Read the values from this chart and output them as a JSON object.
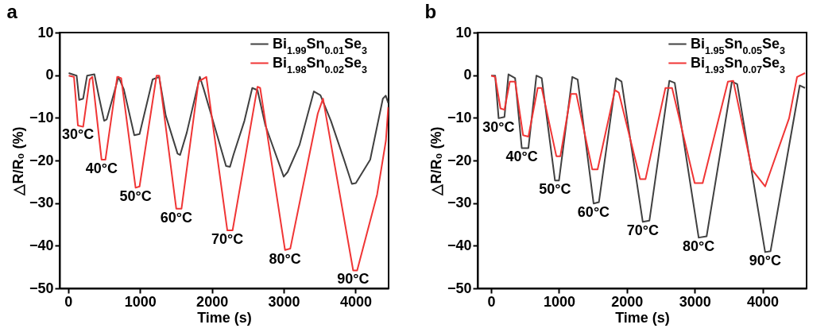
{
  "chart_data": [
    {
      "type": "line",
      "title": "a",
      "xlabel": "Time (s)",
      "ylabel": "△R/R₀ (%)",
      "xlim": [
        -120,
        4460
      ],
      "ylim": [
        -50,
        10
      ],
      "xticks": [
        0,
        1000,
        2000,
        3000,
        4000
      ],
      "yticks": [
        10,
        0,
        -10,
        -20,
        -30,
        -40,
        -50
      ],
      "grid": false,
      "legend": "top right",
      "series": [
        {
          "name": "Bi$_{1.99}$Sn$_{0.01}$Se$_{3}$",
          "color": "#404040",
          "x": [
            7,
            117,
            153,
            208,
            263,
            365,
            427,
            500,
            535,
            700,
            774,
            920,
            993,
            1175,
            1266,
            1358,
            1522,
            1558,
            1650,
            1832,
            1887,
            2015,
            2197,
            2252,
            2300,
            2453,
            2562,
            2635,
            2745,
            3000,
            3055,
            3219,
            3420,
            3511,
            3657,
            3839,
            3949,
            4004,
            4204,
            4380,
            4420,
            4455
          ],
          "values": [
            0.5,
            -0.1,
            -5.8,
            -5.5,
            -0.1,
            0.2,
            -5,
            -10.7,
            -10.4,
            -0.4,
            -3.3,
            -14.1,
            -13.8,
            -1,
            -0.4,
            -9.5,
            -18.4,
            -18.7,
            -13.5,
            -0.4,
            -3.3,
            -10.7,
            -21.3,
            -21.5,
            -18.7,
            -10.7,
            -3,
            -3.5,
            -11.8,
            -23.8,
            -22.7,
            -16.4,
            -3.8,
            -4.7,
            -10.7,
            -19.8,
            -25.5,
            -25.3,
            -19.8,
            -5.5,
            -4.8,
            -6.5
          ]
        },
        {
          "name": "Bi$_{1.98}$Sn$_{0.02}$Se$_{3}$",
          "color": "#f03535",
          "x": [
            7,
            80,
            135,
            208,
            299,
            336,
            464,
            518,
            682,
            737,
            938,
            993,
            1230,
            1266,
            1504,
            1577,
            1814,
            1923,
            2215,
            2288,
            2635,
            2672,
            3018,
            3091,
            3474,
            3547,
            3967,
            4022,
            4300,
            4423,
            4455
          ],
          "values": [
            -0.1,
            -0.4,
            -11.8,
            -12.1,
            -1,
            -0.4,
            -19.8,
            -19.8,
            -0.4,
            -0.7,
            -26.4,
            -26.1,
            -0.1,
            -0.1,
            -31.3,
            -31.3,
            -1.5,
            -0.4,
            -36.4,
            -36.4,
            -2.7,
            -3,
            -41,
            -40.7,
            -9,
            -5.5,
            -45.8,
            -45.8,
            -28,
            -15.3,
            -7.5
          ]
        }
      ],
      "annotations": [
        {
          "text": "30°C",
          "x": 135,
          "y": -11.8
        },
        {
          "text": "40°C",
          "x": 464,
          "y": -19.8
        },
        {
          "text": "50°C",
          "x": 938,
          "y": -26.4
        },
        {
          "text": "60°C",
          "x": 1504,
          "y": -31.3
        },
        {
          "text": "70°C",
          "x": 2215,
          "y": -36.4
        },
        {
          "text": "80°C",
          "x": 3018,
          "y": -41
        },
        {
          "text": "90°C",
          "x": 3967,
          "y": -45.8
        }
      ]
    },
    {
      "type": "line",
      "title": "b",
      "xlabel": "Time (s)",
      "ylabel": "△R/R₀ (%)",
      "xlim": [
        -200,
        4650
      ],
      "ylim": [
        -50,
        10
      ],
      "xticks": [
        0,
        1000,
        2000,
        3000,
        4000
      ],
      "yticks": [
        10,
        0,
        -10,
        -20,
        -30,
        -40,
        -50
      ],
      "grid": false,
      "legend": "top right",
      "series": [
        {
          "name": "Bi$_{1.95}$Sn$_{0.05}$Se$_{3}$",
          "color": "#404040",
          "x": [
            0,
            59,
            110,
            196,
            255,
            353,
            451,
            549,
            667,
            745,
            941,
            1000,
            1196,
            1275,
            1510,
            1588,
            1843,
            1922,
            2235,
            2333,
            2627,
            2706,
            3059,
            3176,
            3549,
            3627,
            4039,
            4118,
            4549,
            4627
          ],
          "values": [
            -0.1,
            -0.1,
            -10.1,
            -9.8,
            0.2,
            -0.7,
            -17.1,
            -17.1,
            -0.1,
            -0.7,
            -24.7,
            -24.7,
            -0.4,
            -1,
            -30.1,
            -29.8,
            -0.7,
            -1.5,
            -34.4,
            -34.1,
            -1.3,
            -1.8,
            -38.1,
            -37.8,
            -1.5,
            -2.1,
            -41.5,
            -41.3,
            -2.4,
            -3
          ]
        },
        {
          "name": "Bi$_{1.93}$Sn$_{0.07}$Se$_{3}$",
          "color": "#f03535",
          "x": [
            0,
            59,
            137,
            196,
            275,
            353,
            471,
            549,
            686,
            745,
            961,
            1020,
            1176,
            1255,
            1490,
            1569,
            1824,
            1882,
            2196,
            2275,
            2569,
            2667,
            3000,
            3118,
            3490,
            3569,
            3843,
            4039,
            4392,
            4510,
            4627
          ],
          "values": [
            -0.1,
            -0.4,
            -7.8,
            -8.1,
            -1.5,
            -1.5,
            -14.1,
            -14.4,
            -3,
            -3,
            -19,
            -19,
            -4.4,
            -4.4,
            -22.1,
            -22.1,
            -3.5,
            -4.1,
            -24.4,
            -24.4,
            -3,
            -3,
            -25.3,
            -25.3,
            -1.5,
            -1.3,
            -22.1,
            -26.1,
            -10.1,
            -0.4,
            0.5
          ]
        }
      ],
      "annotations": [
        {
          "text": "30°C",
          "x": 110,
          "y": -10.1
        },
        {
          "text": "40°C",
          "x": 451,
          "y": -17.1
        },
        {
          "text": "50°C",
          "x": 941,
          "y": -24.7
        },
        {
          "text": "60°C",
          "x": 1510,
          "y": -30.1
        },
        {
          "text": "70°C",
          "x": 2235,
          "y": -34.4
        },
        {
          "text": "80°C",
          "x": 3059,
          "y": -38.1
        },
        {
          "text": "90°C",
          "x": 4039,
          "y": -41.5
        }
      ]
    }
  ]
}
